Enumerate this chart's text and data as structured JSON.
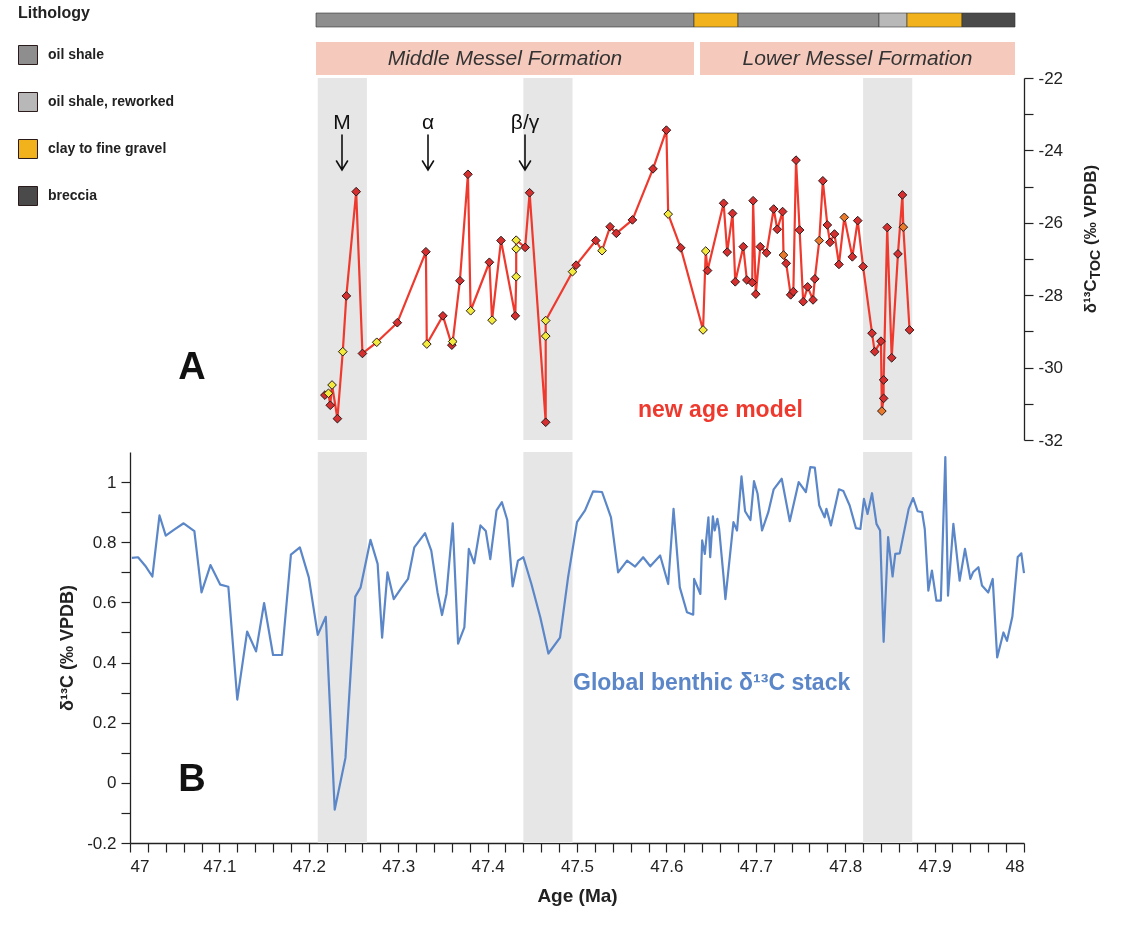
{
  "chart_data": [
    {
      "type": "other",
      "legend": "top left",
      "legend_title": "Lithology",
      "annotations": [
        "Middle Messel Formation",
        "Lower Messel Formation"
      ],
      "series": [
        {
          "name": "oil shale",
          "color": "#8e8e8e"
        },
        {
          "name": "oil shale, reworked",
          "color": "#b8b8b8"
        },
        {
          "name": "clay to fine gravel",
          "color": "#f2b21c"
        },
        {
          "name": "breccia",
          "color": "#4a4a4a"
        }
      ]
    },
    {
      "type": "line",
      "marker": "diamond",
      "tick_labels": "y",
      "xlim": [
        47,
        48
      ],
      "y2lim": [
        -32,
        -22
      ],
      "y2label": "δ¹³C$_{TOC}$ (‰ VPDB)",
      "y2ticks": [
        -32,
        {
          "value": -31,
          "label": null
        },
        -30,
        {
          "value": -29,
          "label": null
        },
        -28,
        {
          "value": -27,
          "label": null
        },
        -26,
        {
          "value": -25,
          "label": null
        },
        -24,
        {
          "value": -23,
          "label": null
        },
        -22
      ],
      "annotations": [
        "A",
        "M",
        "α",
        "β/γ"
      ],
      "bands": [
        {
          "axis": "x",
          "from": 47.21,
          "to": 47.265,
          "color": "#e6e6e6"
        },
        {
          "axis": "x",
          "from": 47.44,
          "to": 47.495,
          "color": "#e6e6e6"
        },
        {
          "axis": "x",
          "from": 47.82,
          "to": 47.875,
          "color": "#e6e6e6"
        }
      ],
      "series": [
        {
          "name": "new age model",
          "axis": "y2",
          "color": "#ee3a2e",
          "x": [
            47.218,
            47.222,
            47.224,
            47.226,
            47.232,
            47.238,
            47.242,
            47.253,
            47.26,
            47.276,
            47.299,
            47.331,
            47.332,
            47.35,
            47.36,
            47.361,
            47.369,
            47.378,
            47.381,
            47.402,
            47.405,
            47.415,
            47.431,
            47.432,
            47.432,
            47.432,
            47.442,
            47.447,
            47.465,
            47.465,
            47.465,
            47.495,
            47.499,
            47.521,
            47.528,
            47.537,
            47.544,
            47.562,
            47.585,
            47.6,
            47.602,
            47.616,
            47.641,
            47.644,
            47.646,
            47.664,
            47.668,
            47.674,
            47.677,
            47.686,
            47.69,
            47.696,
            47.697,
            47.7,
            47.705,
            47.712,
            47.72,
            47.724,
            47.73,
            47.731,
            47.734,
            47.739,
            47.742,
            47.745,
            47.749,
            47.753,
            47.758,
            47.764,
            47.766,
            47.771,
            47.775,
            47.78,
            47.783,
            47.788,
            47.793,
            47.799,
            47.808,
            47.814,
            47.82,
            47.83,
            47.833,
            47.84,
            47.841,
            47.843,
            47.843,
            47.847,
            47.852,
            47.859,
            47.864,
            47.865,
            47.872
          ],
          "values": [
            -30.76,
            -30.71,
            -31.04,
            -30.48,
            -31.41,
            -29.56,
            -28.02,
            -25.14,
            -29.61,
            -29.3,
            -28.76,
            -26.8,
            -29.35,
            -28.57,
            -29.38,
            -29.28,
            -27.6,
            -24.66,
            -28.43,
            -27.09,
            -28.69,
            -26.49,
            -28.57,
            -27.49,
            -26.72,
            -26.48,
            -26.68,
            -25.17,
            -31.51,
            -29.13,
            -28.7,
            -27.35,
            -27.17,
            -26.49,
            -26.77,
            -26.11,
            -26.29,
            -25.92,
            -24.51,
            -23.44,
            -25.76,
            -26.69,
            -28.96,
            -26.78,
            -27.32,
            -25.46,
            -26.81,
            -25.74,
            -27.63,
            -26.66,
            -27.58,
            -27.65,
            -25.39,
            -27.97,
            -26.66,
            -26.83,
            -25.62,
            -26.18,
            -25.69,
            -26.89,
            -27.12,
            -27.99,
            -27.9,
            -24.27,
            -26.2,
            -28.18,
            -27.77,
            -28.13,
            -27.55,
            -26.49,
            -24.84,
            -26.06,
            -26.54,
            -26.31,
            -27.15,
            -25.85,
            -26.94,
            -25.94,
            -27.21,
            -29.05,
            -29.56,
            -29.27,
            -31.2,
            -30.85,
            -30.34,
            -26.13,
            -29.73,
            -26.86,
            -25.23,
            -26.12,
            -28.96
          ],
          "colors": [
            "#d62f2f",
            "#f2ea3c",
            "#d62f2f",
            "#f2ea3c",
            "#d62f2f",
            "#f2ea3c",
            "#d62f2f",
            "#d62f2f",
            "#d62f2f",
            "#f2ea3c",
            "#d62f2f",
            "#d62f2f",
            "#f2ea3c",
            "#d62f2f",
            "#d62f2f",
            "#f2ea3c",
            "#d62f2f",
            "#d62f2f",
            "#f2ea3c",
            "#d62f2f",
            "#f2ea3c",
            "#d62f2f",
            "#d62f2f",
            "#f2ea3c",
            "#f2ea3c",
            "#f2ea3c",
            "#d62f2f",
            "#d62f2f",
            "#d62f2f",
            "#f2ea3c",
            "#f2ea3c",
            "#f2ea3c",
            "#d62f2f",
            "#d62f2f",
            "#f2ea3c",
            "#d62f2f",
            "#d62f2f",
            "#d62f2f",
            "#d62f2f",
            "#d62f2f",
            "#f2ea3c",
            "#d62f2f",
            "#f2ea3c",
            "#f2ea3c",
            "#d62f2f",
            "#d62f2f",
            "#d62f2f",
            "#d62f2f",
            "#d62f2f",
            "#d62f2f",
            "#d62f2f",
            "#d62f2f",
            "#d62f2f",
            "#d62f2f",
            "#d62f2f",
            "#d62f2f",
            "#d62f2f",
            "#d62f2f",
            "#d62f2f",
            "#e97a2c",
            "#d62f2f",
            "#d62f2f",
            "#d62f2f",
            "#d62f2f",
            "#d62f2f",
            "#d62f2f",
            "#d62f2f",
            "#d62f2f",
            "#d62f2f",
            "#e97a2c",
            "#d62f2f",
            "#d62f2f",
            "#d62f2f",
            "#d62f2f",
            "#d62f2f",
            "#e97a2c",
            "#d62f2f",
            "#d62f2f",
            "#d62f2f",
            "#d62f2f",
            "#d62f2f",
            "#d62f2f",
            "#e97a2c",
            "#d62f2f",
            "#d62f2f",
            "#d62f2f",
            "#d62f2f",
            "#d62f2f",
            "#d62f2f",
            "#e97a2c",
            "#d62f2f"
          ]
        }
      ]
    },
    {
      "type": "line",
      "xlim": [
        47,
        48
      ],
      "ylim": [
        -0.2,
        1.1
      ],
      "xlabel": "Age (Ma)",
      "ylabel": "δ¹³C (‰ VPDB)",
      "xticks": [
        47,
        {
          "value": 47.02,
          "label": null
        },
        {
          "value": 47.04,
          "label": null
        },
        {
          "value": 47.06,
          "label": null
        },
        {
          "value": 47.08,
          "label": null
        },
        47.1,
        {
          "value": 47.12,
          "label": null
        },
        {
          "value": 47.14,
          "label": null
        },
        {
          "value": 47.16,
          "label": null
        },
        {
          "value": 47.18,
          "label": null
        },
        47.2,
        {
          "value": 47.22,
          "label": null
        },
        {
          "value": 47.24,
          "label": null
        },
        {
          "value": 47.26,
          "label": null
        },
        {
          "value": 47.28,
          "label": null
        },
        47.3,
        {
          "value": 47.32,
          "label": null
        },
        {
          "value": 47.34,
          "label": null
        },
        {
          "value": 47.36,
          "label": null
        },
        {
          "value": 47.38,
          "label": null
        },
        47.4,
        {
          "value": 47.42,
          "label": null
        },
        {
          "value": 47.44,
          "label": null
        },
        {
          "value": 47.46,
          "label": null
        },
        {
          "value": 47.48,
          "label": null
        },
        47.5,
        {
          "value": 47.52,
          "label": null
        },
        {
          "value": 47.54,
          "label": null
        },
        {
          "value": 47.56,
          "label": null
        },
        {
          "value": 47.58,
          "label": null
        },
        47.6,
        {
          "value": 47.62,
          "label": null
        },
        {
          "value": 47.64,
          "label": null
        },
        {
          "value": 47.66,
          "label": null
        },
        {
          "value": 47.68,
          "label": null
        },
        47.7,
        {
          "value": 47.72,
          "label": null
        },
        {
          "value": 47.74,
          "label": null
        },
        {
          "value": 47.76,
          "label": null
        },
        {
          "value": 47.78,
          "label": null
        },
        47.8,
        {
          "value": 47.82,
          "label": null
        },
        {
          "value": 47.84,
          "label": null
        },
        {
          "value": 47.86,
          "label": null
        },
        {
          "value": 47.88,
          "label": null
        },
        47.9,
        {
          "value": 47.92,
          "label": null
        },
        {
          "value": 47.94,
          "label": null
        },
        {
          "value": 47.96,
          "label": null
        },
        {
          "value": 47.98,
          "label": null
        },
        48
      ],
      "yticks": [
        -0.2,
        {
          "value": -0.1,
          "label": null
        },
        0,
        {
          "value": 0.1,
          "label": null
        },
        0.2,
        {
          "value": 0.3,
          "label": null
        },
        0.4,
        {
          "value": 0.5,
          "label": null
        },
        0.6,
        {
          "value": 0.7,
          "label": null
        },
        0.8,
        {
          "value": 0.9,
          "label": null
        },
        1
      ],
      "annotations": [
        "B"
      ],
      "bands": [
        {
          "axis": "x",
          "from": 47.21,
          "to": 47.265,
          "color": "#e6e6e6"
        },
        {
          "axis": "x",
          "from": 47.44,
          "to": 47.495,
          "color": "#e6e6e6"
        },
        {
          "axis": "x",
          "from": 47.82,
          "to": 47.875,
          "color": "#e6e6e6"
        }
      ],
      "series": [
        {
          "name": "Global benthic δ¹³C stack",
          "color": "#5b87c9",
          "x": [
            47.002,
            47.009,
            47.017,
            47.025,
            47.033,
            47.04,
            47.049,
            47.06,
            47.072,
            47.08,
            47.09,
            47.101,
            47.11,
            47.12,
            47.131,
            47.141,
            47.15,
            47.16,
            47.17,
            47.18,
            47.19,
            47.2,
            47.21,
            47.219,
            47.229,
            47.241,
            47.252,
            47.258,
            47.269,
            47.277,
            47.282,
            47.288,
            47.295,
            47.304,
            47.311,
            47.318,
            47.33,
            47.337,
            47.344,
            47.349,
            47.354,
            47.361,
            47.367,
            47.374,
            47.379,
            47.385,
            47.392,
            47.398,
            47.403,
            47.41,
            47.416,
            47.422,
            47.428,
            47.434,
            47.44,
            47.449,
            47.459,
            47.468,
            47.481,
            47.49,
            47.5,
            47.509,
            47.518,
            47.528,
            47.538,
            47.546,
            47.556,
            47.565,
            47.574,
            47.582,
            47.593,
            47.602,
            47.608,
            47.615,
            47.623,
            47.63,
            47.631,
            47.638,
            47.64,
            47.643,
            47.647,
            47.649,
            47.652,
            47.654,
            47.657,
            47.659,
            47.664,
            47.666,
            47.675,
            47.679,
            47.684,
            47.688,
            47.694,
            47.698,
            47.702,
            47.707,
            47.714,
            47.72,
            47.729,
            47.738,
            47.748,
            47.756,
            47.761,
            47.766,
            47.771,
            47.777,
            47.779,
            47.784,
            47.793,
            47.798,
            47.805,
            47.812,
            47.817,
            47.821,
            47.825,
            47.83,
            47.835,
            47.839,
            47.843,
            47.848,
            47.853,
            47.856,
            47.861,
            47.871,
            47.876,
            47.881,
            47.886,
            47.889,
            47.893,
            47.897,
            47.902,
            47.907,
            47.912,
            47.915,
            47.921,
            47.928,
            47.934,
            47.94,
            47.943,
            47.949,
            47.953,
            47.96,
            47.965,
            47.97,
            47.977,
            47.981,
            47.987,
            47.993,
            47.997,
            48
          ],
          "values": [
            0.748,
            0.75,
            0.722,
            0.686,
            0.889,
            0.822,
            0.841,
            0.863,
            0.837,
            0.633,
            0.724,
            0.659,
            0.652,
            0.277,
            0.503,
            0.437,
            0.598,
            0.425,
            0.425,
            0.759,
            0.783,
            0.683,
            0.492,
            0.552,
            -0.089,
            0.083,
            0.619,
            0.65,
            0.808,
            0.728,
            0.483,
            0.7,
            0.611,
            0.65,
            0.678,
            0.783,
            0.83,
            0.772,
            0.633,
            0.558,
            0.628,
            0.863,
            0.463,
            0.517,
            0.778,
            0.73,
            0.856,
            0.837,
            0.744,
            0.906,
            0.933,
            0.874,
            0.653,
            0.739,
            0.75,
            0.661,
            0.55,
            0.43,
            0.483,
            0.683,
            0.867,
            0.906,
            0.969,
            0.967,
            0.883,
            0.7,
            0.739,
            0.719,
            0.75,
            0.72,
            0.756,
            0.661,
            0.911,
            0.65,
            0.567,
            0.559,
            0.678,
            0.628,
            0.806,
            0.761,
            0.883,
            0.75,
            0.886,
            0.839,
            0.878,
            0.844,
            0.683,
            0.611,
            0.867,
            0.839,
            1.019,
            0.903,
            0.874,
            1.003,
            0.961,
            0.839,
            0.9,
            0.976,
            1.011,
            0.87,
            1.0,
            0.967,
            1.05,
            1.048,
            0.922,
            0.883,
            0.911,
            0.856,
            0.976,
            0.97,
            0.922,
            0.847,
            0.844,
            0.944,
            0.894,
            0.963,
            0.861,
            0.839,
            0.469,
            0.817,
            0.686,
            0.761,
            0.763,
            0.911,
            0.947,
            0.903,
            0.9,
            0.844,
            0.639,
            0.706,
            0.606,
            0.606,
            1.083,
            0.622,
            0.861,
            0.672,
            0.778,
            0.678,
            0.7,
            0.717,
            0.656,
            0.633,
            0.678,
            0.417,
            0.5,
            0.472,
            0.553,
            0.751,
            0.763,
            0.697
          ]
        }
      ]
    }
  ]
}
